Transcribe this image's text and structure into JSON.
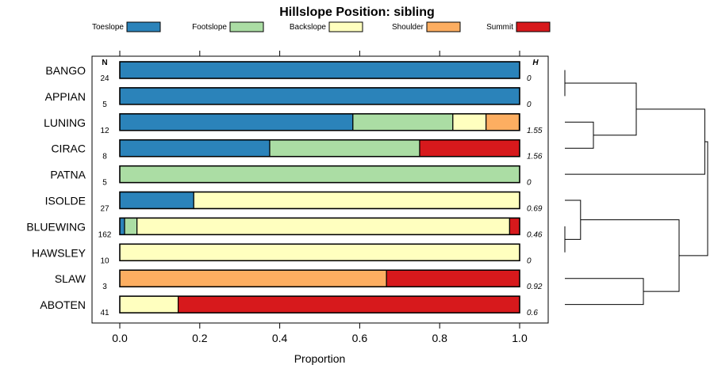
{
  "chart_data": {
    "type": "bar",
    "stacked": true,
    "orientation": "horizontal",
    "title": "Hillslope Position: sibling",
    "xlabel": "Proportion",
    "xlim": [
      0,
      1
    ],
    "xticks": [
      "0.0",
      "0.2",
      "0.4",
      "0.6",
      "0.8",
      "1.0"
    ],
    "n_header": "N",
    "h_header": "H",
    "categories": [
      "BANGO",
      "APPIAN",
      "LUNING",
      "CIRAC",
      "PATNA",
      "ISOLDE",
      "BLUEWING",
      "HAWSLEY",
      "SLAW",
      "ABOTEN"
    ],
    "n": [
      "24",
      "5",
      "12",
      "8",
      "5",
      "27",
      "162",
      "10",
      "3",
      "41"
    ],
    "h": [
      "0",
      "0",
      "1.55",
      "1.56",
      "0",
      "0.69",
      "0.46",
      "0",
      "0.92",
      "0.6"
    ],
    "series": [
      {
        "name": "Toeslope",
        "color": "#2b83ba",
        "values": [
          1.0,
          1.0,
          0.583,
          0.375,
          0,
          0.185,
          0.012,
          0,
          0,
          0
        ]
      },
      {
        "name": "Footslope",
        "color": "#abdda4",
        "values": [
          0,
          0,
          0.25,
          0.375,
          1.0,
          0,
          0.031,
          0,
          0,
          0
        ]
      },
      {
        "name": "Backslope",
        "color": "#ffffbf",
        "values": [
          0,
          0,
          0.083,
          0,
          0,
          0.815,
          0.932,
          1.0,
          0,
          0.146
        ]
      },
      {
        "name": "Shoulder",
        "color": "#fdae61",
        "values": [
          0,
          0,
          0.083,
          0,
          0,
          0,
          0,
          0,
          0.667,
          0
        ]
      },
      {
        "name": "Summit",
        "color": "#d7191c",
        "values": [
          0,
          0,
          0,
          0.25,
          0,
          0,
          0.025,
          0,
          0.333,
          0.854
        ]
      }
    ],
    "dendrogram": {
      "merges": [
        {
          "a": "BANGO",
          "b": "APPIAN",
          "height": 0.0
        },
        {
          "a": "BLUEWING",
          "b": "HAWSLEY",
          "height": 0.0
        },
        {
          "a": "LUNING",
          "b": "CIRAC",
          "height": 0.2
        },
        {
          "a": "ISOLDE",
          "b": "BLUEWING+HAWSLEY",
          "height": 0.11
        },
        {
          "a": "SLAW",
          "b": "ABOTEN",
          "height": 0.55
        },
        {
          "a": "BANGO+APPIAN",
          "b": "LUNING+CIRAC",
          "height": 0.5
        },
        {
          "a": "ISOLDE+BLUEWING+HAWSLEY",
          "b": "SLAW+ABOTEN",
          "height": 0.8
        },
        {
          "a": "BANGO+APPIAN+LUNING+CIRAC",
          "b": "PATNA",
          "height": 0.98
        },
        {
          "a": "BANGO+APPIAN+LUNING+CIRAC+PATNA",
          "b": "ISOLDE+BLUEWING+HAWSLEY+SLAW+ABOTEN",
          "height": 1.0
        }
      ]
    }
  }
}
